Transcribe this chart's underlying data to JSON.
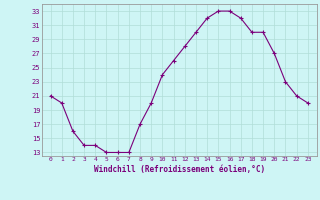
{
  "x": [
    0,
    1,
    2,
    3,
    4,
    5,
    6,
    7,
    8,
    9,
    10,
    11,
    12,
    13,
    14,
    15,
    16,
    17,
    18,
    19,
    20,
    21,
    22,
    23
  ],
  "y": [
    21,
    20,
    16,
    14,
    14,
    13,
    13,
    13,
    17,
    20,
    24,
    26,
    28,
    30,
    32,
    33,
    33,
    32,
    30,
    30,
    27,
    23,
    21,
    20
  ],
  "xlabel": "Windchill (Refroidissement éolien,°C)",
  "ylim": [
    12.5,
    34
  ],
  "yticks": [
    13,
    15,
    17,
    19,
    21,
    23,
    25,
    27,
    29,
    31,
    33
  ],
  "xticks": [
    0,
    1,
    2,
    3,
    4,
    5,
    6,
    7,
    8,
    9,
    10,
    11,
    12,
    13,
    14,
    15,
    16,
    17,
    18,
    19,
    20,
    21,
    22,
    23
  ],
  "line_color": "#7b007b",
  "marker": "+",
  "bg_color": "#cef5f5",
  "grid_color": "#b0ddd8",
  "label_color": "#7b007b",
  "tick_color": "#7b007b",
  "spine_color": "#999999"
}
